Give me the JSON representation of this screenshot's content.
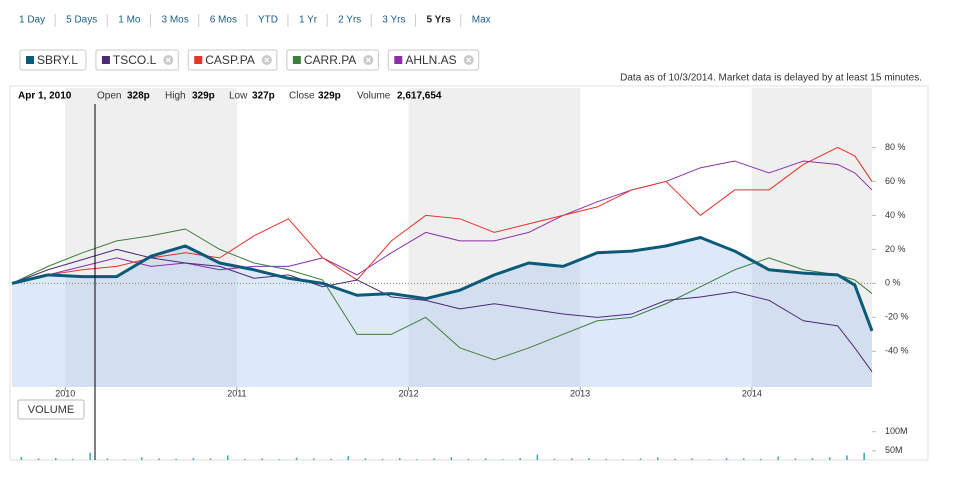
{
  "ranges": [
    "1 Day",
    "5 Days",
    "1 Mo",
    "3 Mos",
    "6 Mos",
    "YTD",
    "1 Yr",
    "2 Yrs",
    "3 Yrs",
    "5 Yrs",
    "Max"
  ],
  "notice": "Data as of 10/3/2014. Market data is delayed by at least 15 minutes.",
  "quote": {
    "date": "Apr 1, 2010",
    "open_label": "Open",
    "open": "328p",
    "high_label": "High",
    "high": "329p",
    "low_label": "Low",
    "low": "327p",
    "close_label": "Close",
    "close": "329p",
    "volume_label": "Volume",
    "volume": "2,617,654"
  },
  "chart_data": {
    "type": "line",
    "x": [
      2009.69,
      2009.9,
      2010.1,
      2010.3,
      2010.5,
      2010.7,
      2010.9,
      2011.1,
      2011.3,
      2011.5,
      2011.7,
      2011.9,
      2012.1,
      2012.3,
      2012.5,
      2012.7,
      2012.9,
      2013.1,
      2013.3,
      2013.5,
      2013.7,
      2013.9,
      2014.1,
      2014.3,
      2014.5,
      2014.6,
      2014.7
    ],
    "series": [
      {
        "name": "SBRY.L",
        "color": "#0b5b78",
        "area": true,
        "values": [
          0,
          5,
          4,
          4,
          16,
          22,
          12,
          8,
          3,
          0,
          -7,
          -6,
          -9,
          -4,
          5,
          12,
          10,
          18,
          19,
          22,
          27,
          19,
          8,
          6,
          5,
          -1,
          -28
        ]
      },
      {
        "name": "TSCO.L",
        "color": "#4b2a78",
        "values": [
          0,
          8,
          14,
          20,
          15,
          12,
          10,
          3,
          5,
          -2,
          2,
          -8,
          -10,
          -15,
          -12,
          -15,
          -18,
          -20,
          -18,
          -10,
          -8,
          -5,
          -10,
          -22,
          -25,
          -38,
          -52
        ]
      },
      {
        "name": "CASP.PA",
        "color": "#e8322a",
        "values": [
          0,
          5,
          8,
          10,
          15,
          18,
          15,
          28,
          38,
          15,
          2,
          25,
          40,
          38,
          30,
          35,
          40,
          45,
          55,
          60,
          40,
          55,
          55,
          70,
          80,
          75,
          60
        ]
      },
      {
        "name": "CARR.PA",
        "color": "#3d7f3a",
        "values": [
          0,
          10,
          18,
          25,
          28,
          32,
          20,
          12,
          8,
          2,
          -30,
          -30,
          -20,
          -38,
          -45,
          -38,
          -30,
          -22,
          -20,
          -12,
          -2,
          8,
          15,
          8,
          5,
          2,
          -6
        ]
      },
      {
        "name": "AHLN.AS",
        "color": "#8b2fa8",
        "values": [
          0,
          5,
          10,
          15,
          10,
          12,
          8,
          10,
          10,
          15,
          5,
          18,
          30,
          25,
          25,
          30,
          40,
          48,
          55,
          60,
          68,
          72,
          65,
          72,
          70,
          65,
          55
        ]
      }
    ],
    "xlim": [
      2009.69,
      2014.7
    ],
    "xticks": [
      2010,
      2011,
      2012,
      2013,
      2014
    ],
    "ylim": [
      -61,
      115
    ],
    "yticks": [
      {
        "value": 80,
        "label": "80 %"
      },
      {
        "value": 60,
        "label": "60 %"
      },
      {
        "value": 40,
        "label": "40 %"
      },
      {
        "value": 20,
        "label": "20 %"
      },
      {
        "value": 0,
        "label": "0 %"
      },
      {
        "value": -20,
        "label": "-20 %"
      },
      {
        "value": -40,
        "label": "-40 %"
      }
    ],
    "volume": {
      "label": "VOLUME",
      "color": "#39a9b7",
      "values": [
        34,
        30,
        31,
        29,
        45,
        30,
        28,
        33,
        30,
        29,
        31,
        30,
        38,
        29,
        30,
        28,
        32,
        30,
        29,
        36,
        30,
        29,
        31,
        28,
        30,
        33,
        29,
        30,
        28,
        31,
        40,
        29,
        30,
        31,
        29,
        28,
        30,
        33,
        29,
        30,
        28,
        31,
        30,
        29,
        35,
        30,
        31,
        33,
        38,
        45
      ],
      "ylim": [
        26,
        115
      ],
      "yticks": [
        {
          "value": 100,
          "label": "100M"
        },
        {
          "value": 50,
          "label": "50M"
        }
      ]
    }
  }
}
